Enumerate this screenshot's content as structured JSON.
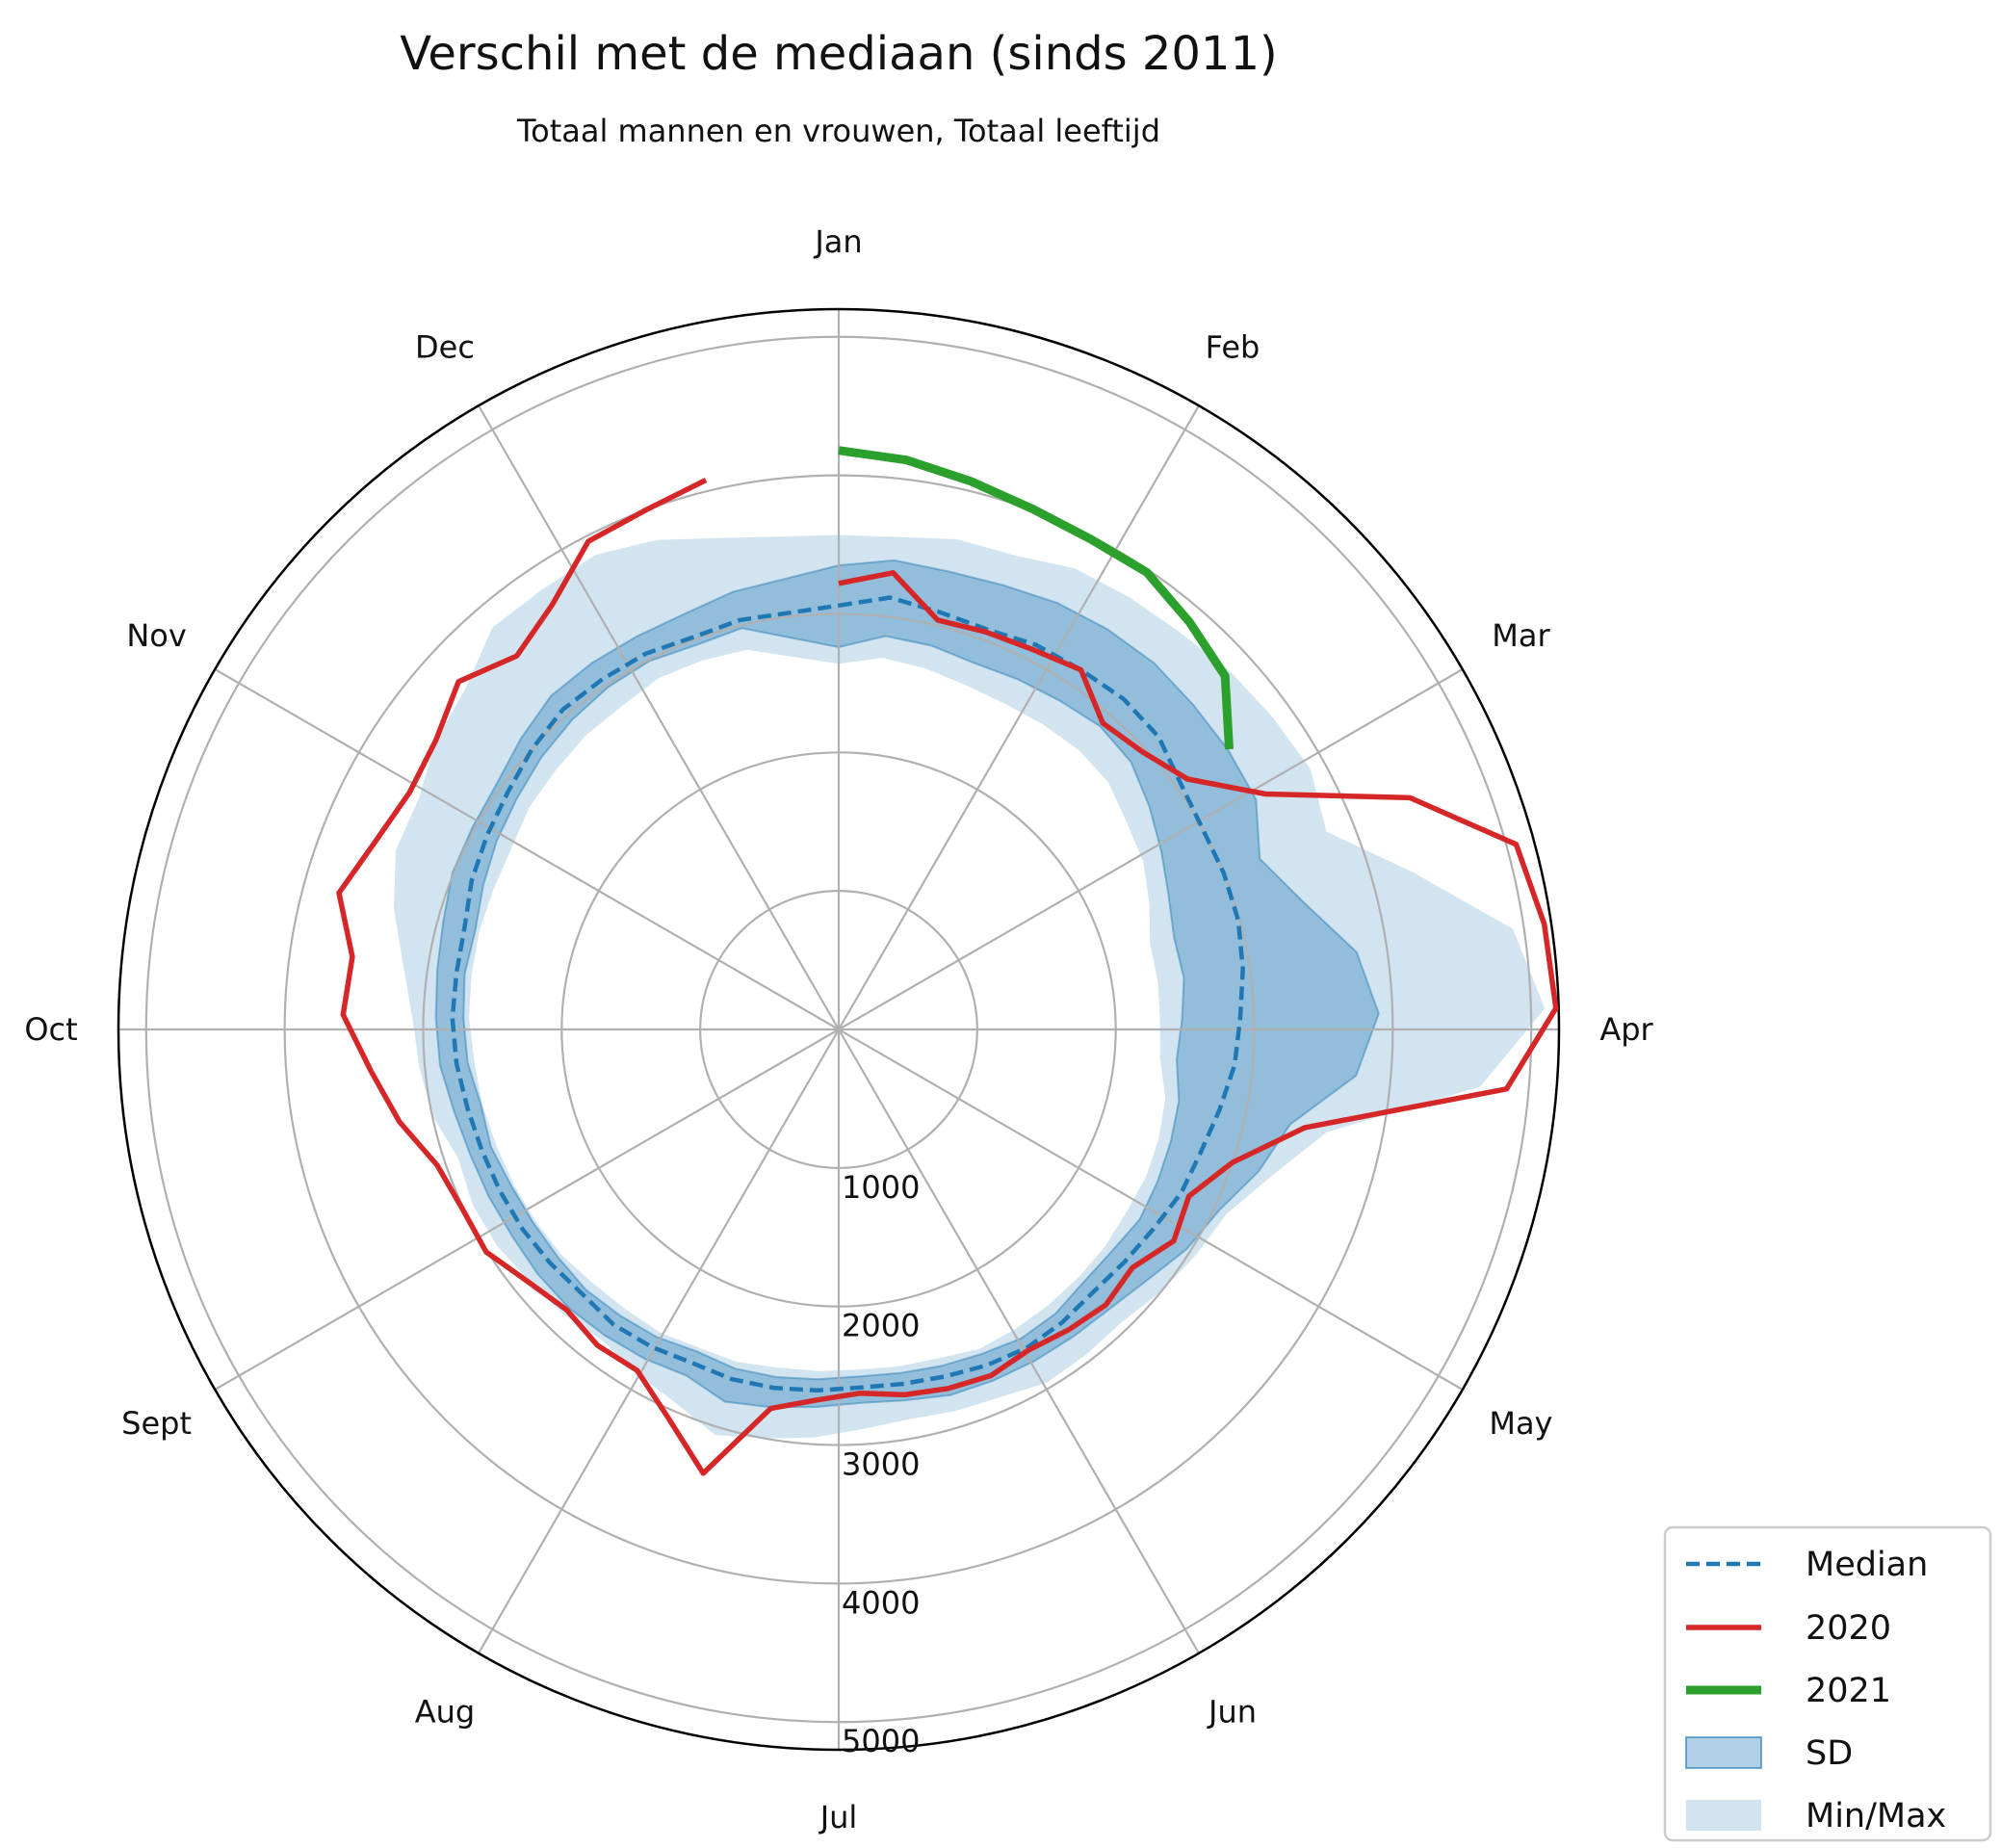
{
  "chart_data": {
    "type": "polar-line",
    "title": "Verschil met de mediaan (sinds 2011)",
    "subtitle": "Totaal mannen en vrouwen, Totaal leeftijd",
    "theta_labels": [
      "Jan",
      "Feb",
      "Mar",
      "Apr",
      "May",
      "Jun",
      "Jul",
      "Aug",
      "Sept",
      "Oct",
      "Nov",
      "Dec"
    ],
    "r_ticks": [
      1000,
      2000,
      3000,
      4000,
      5000
    ],
    "r_tick_labels": [
      "1000",
      "2000",
      "3000",
      "4000",
      "5000"
    ],
    "rlim": [
      0,
      5200
    ],
    "grid": true,
    "legend_position": "lower-right, outside",
    "x_unit": "week",
    "x_max": 53,
    "series": [
      {
        "name": "Median",
        "color": "#1f77b4",
        "style": "dashed",
        "x": [
          1,
          2,
          3,
          4,
          5,
          6,
          7,
          8,
          9,
          10,
          11,
          12,
          13,
          14,
          15,
          16,
          17,
          18,
          19,
          20,
          21,
          22,
          23,
          24,
          25,
          26,
          27,
          28,
          29,
          30,
          31,
          32,
          33,
          34,
          35,
          36,
          37,
          38,
          39,
          40,
          41,
          42,
          43,
          44,
          45,
          46,
          47,
          48,
          49,
          50,
          51,
          52
        ],
        "values": [
          3060,
          3140,
          3100,
          3080,
          3120,
          3130,
          3150,
          3130,
          3040,
          3000,
          3000,
          2990,
          2950,
          2900,
          2870,
          2810,
          2760,
          2740,
          2690,
          2660,
          2640,
          2660,
          2670,
          2650,
          2620,
          2600,
          2590,
          2610,
          2630,
          2640,
          2630,
          2660,
          2680,
          2660,
          2680,
          2700,
          2710,
          2720,
          2740,
          2770,
          2790,
          2790,
          2800,
          2860,
          2900,
          2940,
          3000,
          3050,
          3050,
          3050,
          3020,
          3040
        ]
      },
      {
        "name": "2020",
        "color": "#d62728",
        "style": "solid",
        "x": [
          1,
          2,
          3,
          4,
          5,
          6,
          7,
          8,
          9,
          10,
          11,
          12,
          13,
          14,
          15,
          16,
          17,
          18,
          19,
          20,
          21,
          22,
          23,
          24,
          25,
          26,
          27,
          28,
          29,
          30,
          31,
          32,
          33,
          34,
          35,
          36,
          37,
          38,
          39,
          40,
          41,
          42,
          43,
          44,
          45,
          46,
          47,
          48,
          49,
          50,
          51,
          52
        ],
        "values": [
          3220,
          3320,
          3040,
          3060,
          3080,
          3130,
          2920,
          2970,
          3100,
          3520,
          4450,
          5070,
          5150,
          5180,
          4840,
          3440,
          3000,
          2800,
          2860,
          2730,
          2770,
          2730,
          2690,
          2730,
          2710,
          2680,
          2630,
          2680,
          2780,
          3350,
          3060,
          2860,
          2870,
          2820,
          2890,
          3010,
          3010,
          3060,
          3240,
          3390,
          3580,
          3550,
          3740,
          3610,
          3540,
          3580,
          3720,
          3560,
          3700,
          3960,
          4000,
          4080
        ]
      },
      {
        "name": "2021",
        "color": "#2ca02c",
        "style": "solid",
        "x": [
          1,
          2,
          3,
          4,
          5,
          6,
          7,
          8,
          9
        ],
        "values": [
          4180,
          4140,
          4070,
          4010,
          3980,
          3980,
          3880,
          3780,
          3470
        ]
      }
    ],
    "bands": [
      {
        "name": "SD",
        "color": "#1f77b4",
        "x": [
          1,
          2,
          3,
          4,
          5,
          6,
          7,
          8,
          9,
          10,
          11,
          12,
          13,
          14,
          15,
          16,
          17,
          18,
          19,
          20,
          21,
          22,
          23,
          24,
          25,
          26,
          27,
          28,
          29,
          30,
          31,
          32,
          33,
          34,
          35,
          36,
          37,
          38,
          39,
          40,
          41,
          42,
          43,
          44,
          45,
          46,
          47,
          48,
          49,
          50,
          51,
          52
        ],
        "low": [
          2760,
          2860,
          2850,
          2820,
          2840,
          2860,
          2890,
          2860,
          2760,
          2660,
          2570,
          2510,
          2520,
          2480,
          2450,
          2510,
          2530,
          2550,
          2570,
          2540,
          2540,
          2580,
          2590,
          2560,
          2540,
          2520,
          2510,
          2530,
          2550,
          2560,
          2540,
          2580,
          2600,
          2620,
          2610,
          2610,
          2620,
          2650,
          2640,
          2690,
          2710,
          2730,
          2720,
          2770,
          2820,
          2860,
          2910,
          2950,
          2980,
          2990,
          2960,
          2980
        ],
        "high": [
          3350,
          3410,
          3400,
          3420,
          3460,
          3480,
          3490,
          3470,
          3460,
          3440,
          3280,
          3480,
          3780,
          3900,
          3750,
          3330,
          3200,
          3040,
          2970,
          2870,
          2810,
          2790,
          2780,
          2770,
          2760,
          2720,
          2700,
          2730,
          2770,
          2810,
          2730,
          2760,
          2780,
          2800,
          2800,
          2790,
          2800,
          2810,
          2840,
          2890,
          2910,
          2930,
          2960,
          3010,
          3020,
          3040,
          3110,
          3180,
          3190,
          3190,
          3200,
          3250
        ]
      },
      {
        "name": "Min/Max",
        "color": "#1f77b4",
        "x": [
          1,
          2,
          3,
          4,
          5,
          6,
          7,
          8,
          9,
          10,
          11,
          12,
          13,
          14,
          15,
          16,
          17,
          18,
          19,
          20,
          21,
          22,
          23,
          24,
          25,
          26,
          27,
          28,
          29,
          30,
          31,
          32,
          33,
          34,
          35,
          36,
          37,
          38,
          39,
          40,
          41,
          42,
          43,
          44,
          45,
          46,
          47,
          48,
          49,
          50,
          51,
          52
        ],
        "low": [
          2640,
          2700,
          2680,
          2650,
          2640,
          2650,
          2660,
          2640,
          2560,
          2510,
          2420,
          2330,
          2330,
          2320,
          2330,
          2410,
          2440,
          2460,
          2460,
          2480,
          2490,
          2500,
          2510,
          2520,
          2480,
          2470,
          2460,
          2470,
          2480,
          2510,
          2510,
          2540,
          2540,
          2550,
          2580,
          2590,
          2600,
          2610,
          2630,
          2640,
          2670,
          2680,
          2690,
          2690,
          2700,
          2750,
          2770,
          2800,
          2810,
          2850,
          2840,
          2820
        ],
        "high": [
          3570,
          3580,
          3640,
          3650,
          3740,
          3760,
          3780,
          3830,
          3860,
          3890,
          3800,
          4300,
          4920,
          5100,
          4650,
          3600,
          3300,
          3100,
          3050,
          3000,
          2940,
          2950,
          2960,
          2900,
          2880,
          2860,
          2890,
          2950,
          3000,
          3060,
          2940,
          2880,
          2820,
          2860,
          2880,
          2920,
          2930,
          2900,
          3000,
          3040,
          3080,
          3180,
          3330,
          3450,
          3460,
          3580,
          3650,
          3830,
          3830,
          3850,
          3770,
          3650
        ]
      }
    ],
    "legend": [
      "Median",
      "2020",
      "2021",
      "SD",
      "Min/Max"
    ]
  }
}
